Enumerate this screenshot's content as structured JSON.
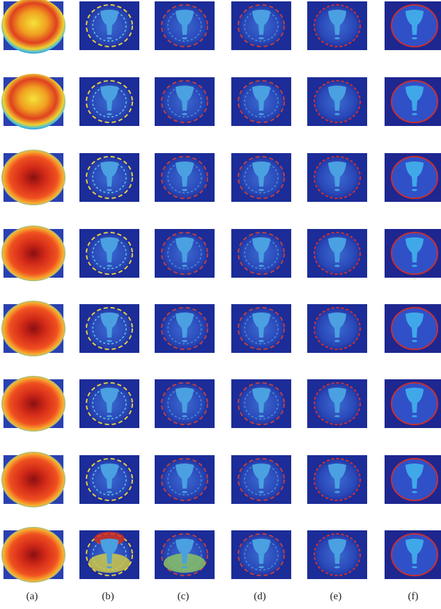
{
  "labels": [
    "(a)",
    "(b)",
    "(c)",
    "(d)",
    "(e)",
    "(f)"
  ]
}
